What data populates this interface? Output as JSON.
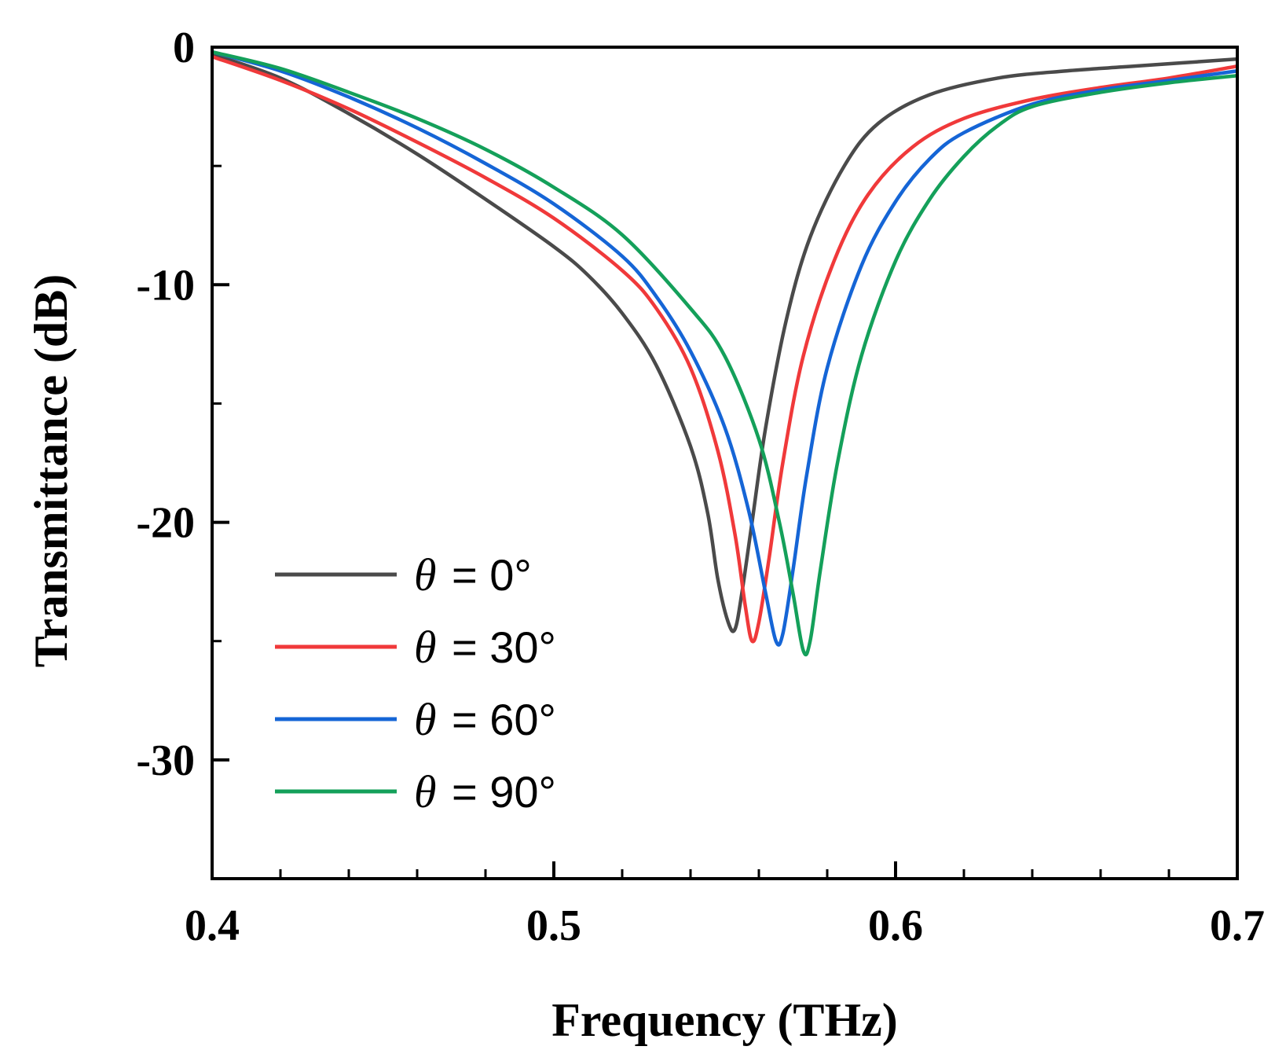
{
  "chart_data": {
    "type": "line",
    "title": "",
    "xlabel": "Frequency (THz)",
    "ylabel": "Transmittance (dB)",
    "xlim": [
      0.4,
      0.7
    ],
    "ylim": [
      -35,
      0
    ],
    "x_ticks": [
      0.4,
      0.5,
      0.6,
      0.7
    ],
    "x_tick_labels": [
      "0.4",
      "0.5",
      "0.6",
      "0.7"
    ],
    "x_minor_step": 0.02,
    "y_ticks": [
      0,
      -10,
      -20,
      -30
    ],
    "y_tick_labels": [
      "0",
      "-10",
      "-20",
      "-30"
    ],
    "y_minor_step": 5,
    "grid": false,
    "legend_position": "lower-left",
    "series": [
      {
        "name": "θ = 0°",
        "legend_symbol": "θ",
        "legend_text": "= 0°",
        "color": "#4a4a4a",
        "points": [
          [
            0.4,
            -0.3
          ],
          [
            0.42,
            -1.3
          ],
          [
            0.44,
            -2.8
          ],
          [
            0.46,
            -4.5
          ],
          [
            0.48,
            -6.4
          ],
          [
            0.5,
            -8.4
          ],
          [
            0.51,
            -9.6
          ],
          [
            0.52,
            -11.2
          ],
          [
            0.53,
            -13.4
          ],
          [
            0.54,
            -16.8
          ],
          [
            0.545,
            -19.6
          ],
          [
            0.548,
            -22.4
          ],
          [
            0.551,
            -24.2
          ],
          [
            0.553,
            -24.5
          ],
          [
            0.555,
            -23.0
          ],
          [
            0.558,
            -20.0
          ],
          [
            0.562,
            -16.0
          ],
          [
            0.568,
            -11.5
          ],
          [
            0.575,
            -8.0
          ],
          [
            0.585,
            -5.0
          ],
          [
            0.595,
            -3.2
          ],
          [
            0.61,
            -2.0
          ],
          [
            0.63,
            -1.3
          ],
          [
            0.65,
            -1.0
          ],
          [
            0.67,
            -0.8
          ],
          [
            0.7,
            -0.5
          ]
        ]
      },
      {
        "name": "θ = 30°",
        "legend_symbol": "θ",
        "legend_text": "= 30°",
        "color": "#f0393a",
        "points": [
          [
            0.4,
            -0.4
          ],
          [
            0.42,
            -1.4
          ],
          [
            0.44,
            -2.6
          ],
          [
            0.46,
            -4.0
          ],
          [
            0.48,
            -5.5
          ],
          [
            0.5,
            -7.2
          ],
          [
            0.52,
            -9.4
          ],
          [
            0.53,
            -11.0
          ],
          [
            0.54,
            -13.5
          ],
          [
            0.548,
            -17.0
          ],
          [
            0.553,
            -20.5
          ],
          [
            0.556,
            -23.5
          ],
          [
            0.558,
            -25.0
          ],
          [
            0.56,
            -24.2
          ],
          [
            0.563,
            -21.5
          ],
          [
            0.567,
            -17.5
          ],
          [
            0.573,
            -13.0
          ],
          [
            0.582,
            -9.0
          ],
          [
            0.592,
            -6.2
          ],
          [
            0.605,
            -4.2
          ],
          [
            0.62,
            -3.0
          ],
          [
            0.64,
            -2.2
          ],
          [
            0.66,
            -1.7
          ],
          [
            0.68,
            -1.3
          ],
          [
            0.7,
            -0.8
          ]
        ]
      },
      {
        "name": "θ = 60°",
        "legend_symbol": "θ",
        "legend_text": "= 60°",
        "color": "#1565d6",
        "points": [
          [
            0.4,
            -0.2
          ],
          [
            0.42,
            -1.0
          ],
          [
            0.44,
            -2.1
          ],
          [
            0.46,
            -3.4
          ],
          [
            0.48,
            -4.9
          ],
          [
            0.5,
            -6.6
          ],
          [
            0.52,
            -8.8
          ],
          [
            0.53,
            -10.5
          ],
          [
            0.54,
            -12.8
          ],
          [
            0.55,
            -16.0
          ],
          [
            0.557,
            -19.5
          ],
          [
            0.562,
            -23.0
          ],
          [
            0.565,
            -25.0
          ],
          [
            0.567,
            -24.7
          ],
          [
            0.57,
            -22.0
          ],
          [
            0.574,
            -18.0
          ],
          [
            0.58,
            -13.5
          ],
          [
            0.59,
            -9.2
          ],
          [
            0.6,
            -6.5
          ],
          [
            0.61,
            -4.7
          ],
          [
            0.62,
            -3.6
          ],
          [
            0.64,
            -2.4
          ],
          [
            0.66,
            -1.8
          ],
          [
            0.68,
            -1.4
          ],
          [
            0.7,
            -1.0
          ]
        ]
      },
      {
        "name": "θ = 90°",
        "legend_symbol": "θ",
        "legend_text": "= 90°",
        "color": "#14a05a",
        "points": [
          [
            0.4,
            -0.2
          ],
          [
            0.42,
            -0.9
          ],
          [
            0.44,
            -1.9
          ],
          [
            0.46,
            -3.0
          ],
          [
            0.48,
            -4.3
          ],
          [
            0.5,
            -5.9
          ],
          [
            0.52,
            -7.9
          ],
          [
            0.54,
            -11.0
          ],
          [
            0.55,
            -13.0
          ],
          [
            0.56,
            -16.5
          ],
          [
            0.566,
            -20.0
          ],
          [
            0.57,
            -23.0
          ],
          [
            0.573,
            -25.4
          ],
          [
            0.575,
            -25.0
          ],
          [
            0.578,
            -22.0
          ],
          [
            0.583,
            -17.5
          ],
          [
            0.59,
            -13.0
          ],
          [
            0.6,
            -9.0
          ],
          [
            0.61,
            -6.4
          ],
          [
            0.62,
            -4.6
          ],
          [
            0.63,
            -3.3
          ],
          [
            0.64,
            -2.5
          ],
          [
            0.66,
            -1.9
          ],
          [
            0.68,
            -1.5
          ],
          [
            0.7,
            -1.2
          ]
        ]
      }
    ]
  }
}
